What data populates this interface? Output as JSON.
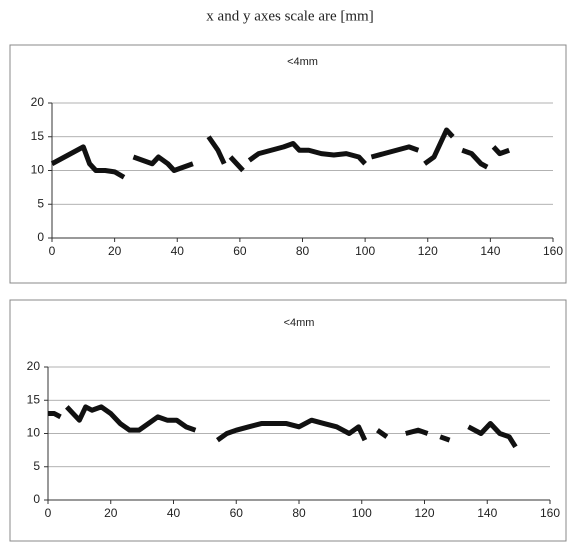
{
  "title": "x and y axes scale are [mm]",
  "chart_data": [
    {
      "type": "line",
      "title": "<4mm",
      "color": "#111111",
      "grid": true,
      "xlim": [
        0,
        160
      ],
      "xticks": [
        0,
        20,
        40,
        60,
        80,
        100,
        120,
        140,
        160
      ],
      "ylim": [
        0,
        20
      ],
      "yticks": [
        0,
        5,
        10,
        15,
        20
      ],
      "x": [
        0,
        2,
        4,
        6,
        8,
        10,
        12,
        14,
        17,
        20,
        23,
        24.5,
        26,
        29,
        32,
        34,
        37,
        39,
        42,
        45,
        47,
        50,
        53,
        55,
        56,
        57,
        59,
        61,
        62,
        63,
        66,
        70,
        74,
        77,
        79,
        82,
        86,
        90,
        94,
        98,
        100,
        101,
        102,
        106,
        110,
        114,
        117,
        118.5,
        119,
        122,
        124,
        126,
        128,
        129,
        131,
        134,
        137,
        139,
        140,
        141,
        143,
        146
      ],
      "values": [
        11,
        11.5,
        12,
        12.5,
        13,
        13.5,
        11,
        10,
        10,
        9.8,
        9,
        null,
        12,
        11.5,
        11,
        12,
        11,
        10,
        10.5,
        11,
        null,
        15,
        13,
        11,
        null,
        12,
        11,
        10,
        null,
        11.5,
        12.5,
        13,
        13.5,
        14,
        13,
        13,
        12.5,
        12.3,
        12.5,
        12,
        11,
        null,
        12,
        12.5,
        13,
        13.5,
        13,
        null,
        11,
        12,
        14,
        16,
        15,
        null,
        13,
        12.5,
        11,
        10.5,
        null,
        13.5,
        12.5,
        13
      ]
    },
    {
      "type": "line",
      "title": "<4mm",
      "color": "#111111",
      "grid": true,
      "xlim": [
        0,
        160
      ],
      "xticks": [
        0,
        20,
        40,
        60,
        80,
        100,
        120,
        140,
        160
      ],
      "ylim": [
        0,
        20
      ],
      "yticks": [
        0,
        5,
        10,
        15,
        20
      ],
      "x": [
        0,
        2,
        4,
        5,
        6,
        8,
        10,
        12,
        14,
        17,
        20,
        23,
        26,
        29,
        32,
        35,
        38,
        41,
        44,
        47,
        51,
        54,
        57,
        60,
        64,
        68,
        72,
        76,
        80,
        84,
        88,
        92,
        96,
        99,
        101,
        103,
        105,
        108,
        110,
        114,
        118,
        121,
        123,
        125,
        128,
        131,
        134,
        138,
        141,
        144,
        147,
        149
      ],
      "values": [
        13,
        13,
        12.5,
        null,
        14,
        13,
        12,
        14,
        13.5,
        14,
        13,
        11.5,
        10.5,
        10.5,
        11.5,
        12.5,
        12,
        12,
        11,
        10.5,
        null,
        9,
        10,
        10.5,
        11,
        11.5,
        11.5,
        11.5,
        11,
        12,
        11.5,
        11,
        10,
        11,
        9,
        null,
        10.5,
        9.5,
        null,
        10,
        10.5,
        10,
        null,
        9.5,
        9,
        null,
        11,
        10,
        11.5,
        10,
        9.5,
        8
      ]
    }
  ]
}
